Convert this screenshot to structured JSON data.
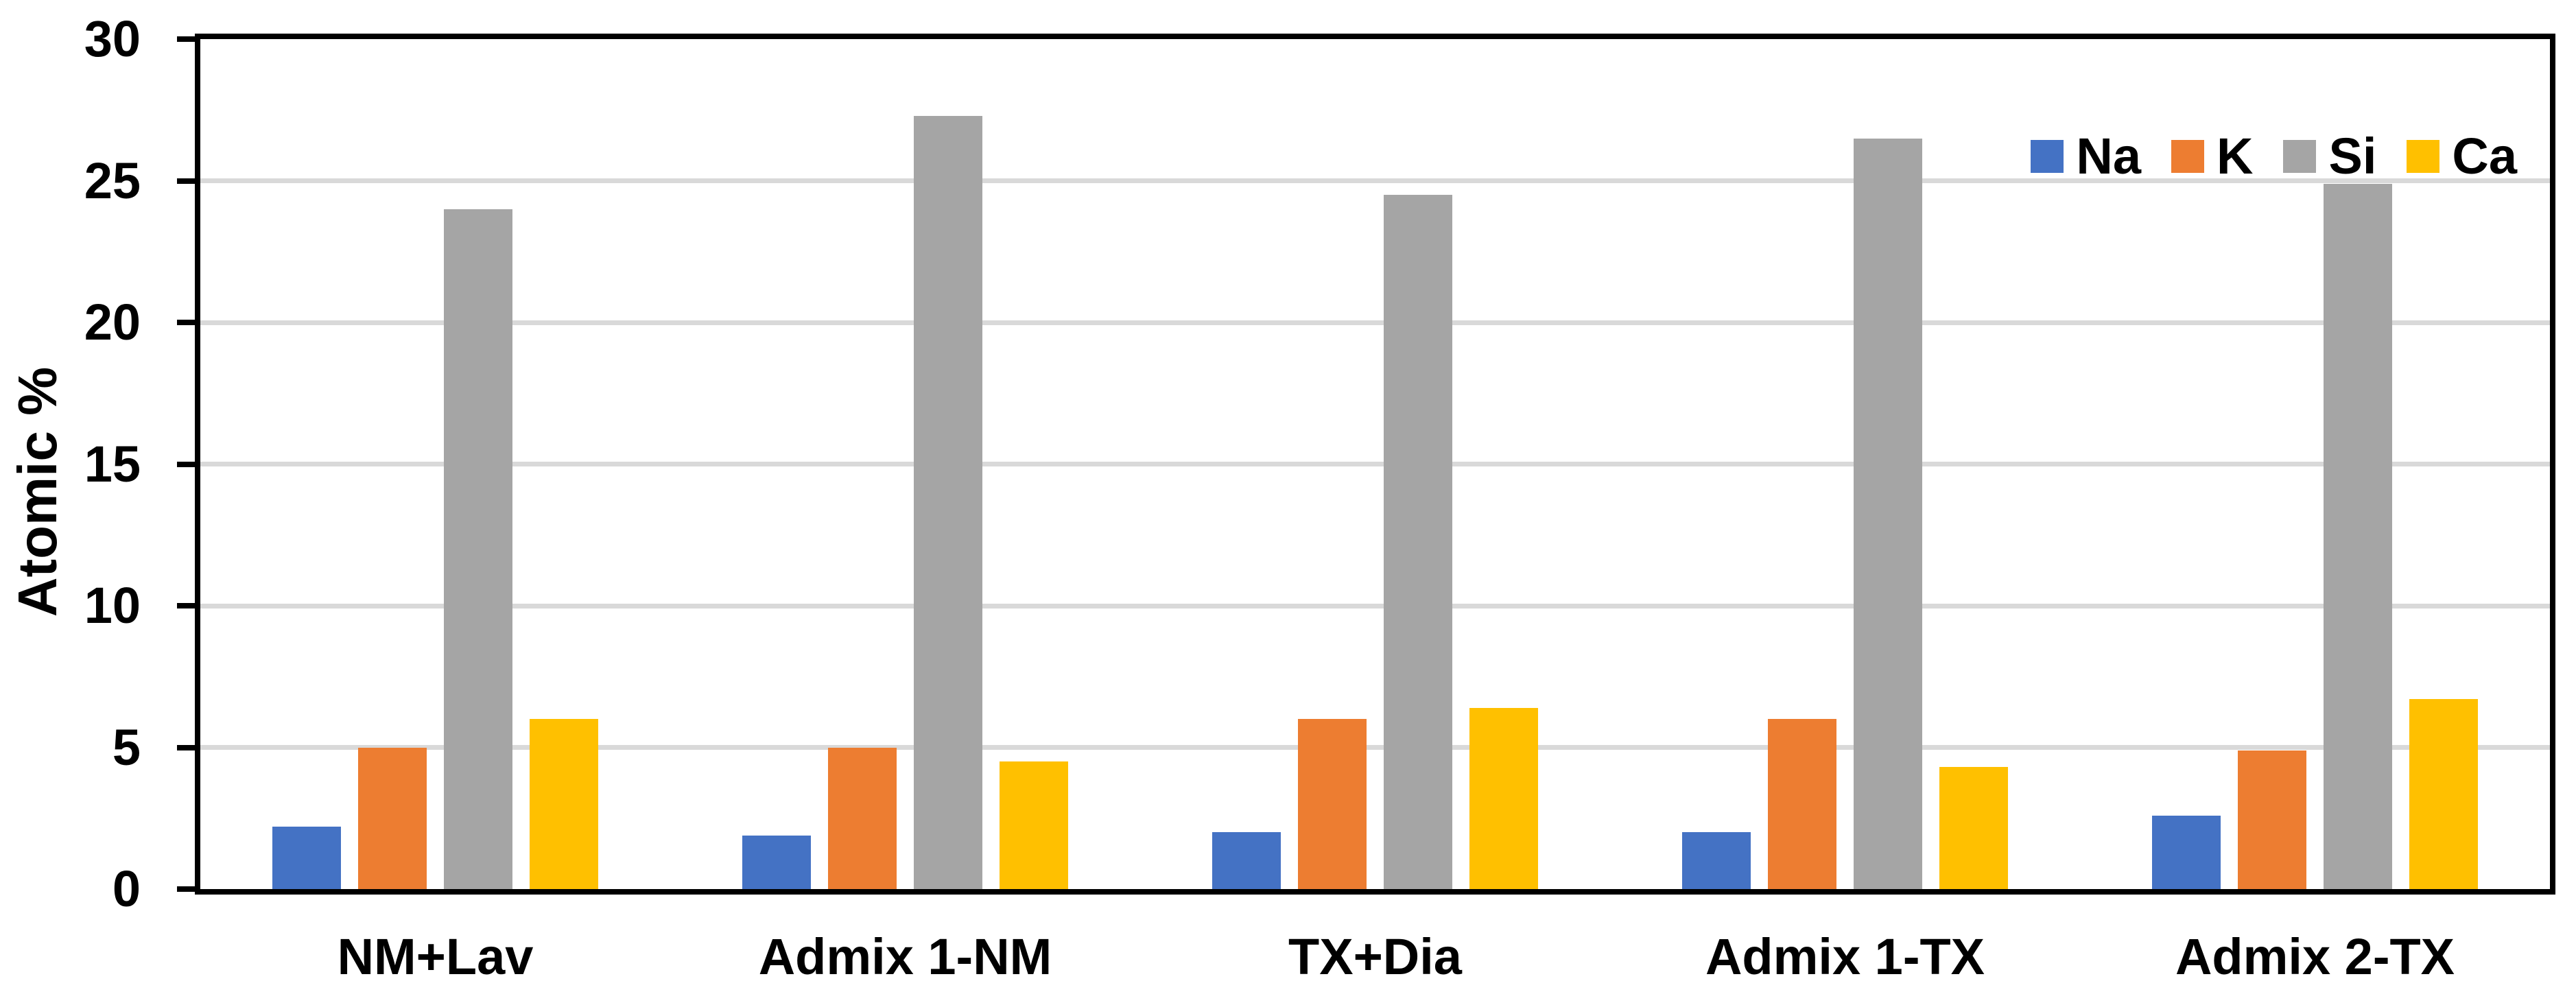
{
  "chart_data": {
    "type": "bar",
    "title": "",
    "xlabel": "",
    "ylabel": "Atomic %",
    "ylim": [
      0,
      30
    ],
    "yticks": [
      0,
      5,
      10,
      15,
      20,
      25,
      30
    ],
    "grid": "horizontal",
    "legend_position": "top-right",
    "categories": [
      "NM+Lav",
      "Admix 1-NM",
      "TX+Dia",
      "Admix 1-TX",
      "Admix 2-TX"
    ],
    "series": [
      {
        "name": "Na",
        "color": "#4472C4",
        "values": [
          2.2,
          1.9,
          2.0,
          2.0,
          2.6
        ]
      },
      {
        "name": "K",
        "color": "#ED7D31",
        "values": [
          5.0,
          5.0,
          6.0,
          6.0,
          4.9
        ]
      },
      {
        "name": "Si",
        "color": "#A5A5A5",
        "values": [
          24.0,
          27.3,
          24.5,
          26.5,
          24.9
        ]
      },
      {
        "name": "Ca",
        "color": "#FFC000",
        "values": [
          6.0,
          4.5,
          6.4,
          4.3,
          6.7
        ]
      }
    ]
  },
  "style": {
    "gridline_color": "#D9D9D9",
    "axis_color": "#000000",
    "text_color": "#000000",
    "background_color": "#FFFFFF"
  }
}
